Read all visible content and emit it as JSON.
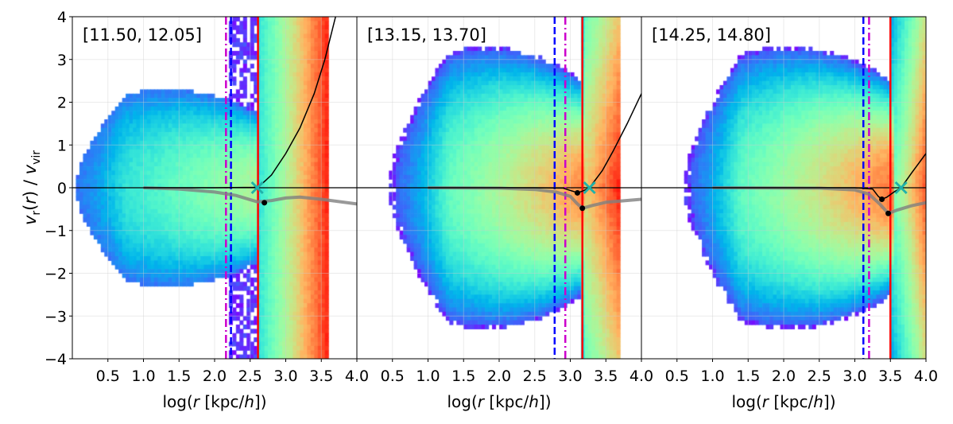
{
  "chart_data": {
    "type": "heatmap",
    "ylabel": "v_r(r) / v_vir",
    "xlabel": "log(r [kpc/h])",
    "xlim": [
      0,
      4
    ],
    "ylim": [
      -4,
      4
    ],
    "xticks": [
      "0.5",
      "1.0",
      "1.5",
      "2.0",
      "2.5",
      "3.0",
      "3.5",
      "4.0"
    ],
    "yticks": [
      "−4",
      "−3",
      "−2",
      "−1",
      "0",
      "1",
      "2",
      "3",
      "4"
    ],
    "grid": true,
    "colormap": "rainbow",
    "colors": {
      "blue_dashed": "#0000ff",
      "magenta_dashdot": "#cc00cc",
      "red_line": "#ff0000",
      "cross": "#20b2aa",
      "mean_profile": "#808080",
      "model_curve": "#000000",
      "contours": "#ffffff"
    },
    "panels": [
      {
        "label": "[11.50, 12.05]",
        "blue_dashed_x": 2.23,
        "magenta_dashdot_x": 2.16,
        "red_x": 2.61,
        "cross": [
          2.6,
          0
        ],
        "dots": [
          [
            2.7,
            -0.35
          ]
        ],
        "mean_profile": [
          [
            1.0,
            0
          ],
          [
            1.5,
            -0.03
          ],
          [
            2.0,
            -0.1
          ],
          [
            2.3,
            -0.18
          ],
          [
            2.6,
            -0.33
          ],
          [
            2.8,
            -0.3
          ],
          [
            3.0,
            -0.24
          ],
          [
            3.2,
            -0.22
          ],
          [
            3.5,
            -0.27
          ],
          [
            4.0,
            -0.38
          ]
        ],
        "model_curve": [
          [
            1.0,
            0
          ],
          [
            2.0,
            0
          ],
          [
            2.55,
            0.01
          ],
          [
            2.62,
            0.02
          ],
          [
            2.8,
            0.3
          ],
          [
            3.0,
            0.8
          ],
          [
            3.2,
            1.4
          ],
          [
            3.4,
            2.2
          ],
          [
            3.55,
            3.0
          ],
          [
            3.7,
            4.0
          ]
        ]
      },
      {
        "label": "[13.15, 13.70]",
        "blue_dashed_x": 2.78,
        "magenta_dashdot_x": 2.93,
        "red_x": 3.17,
        "cross": [
          3.27,
          0
        ],
        "dots": [
          [
            3.1,
            -0.12
          ],
          [
            3.17,
            -0.48
          ]
        ],
        "mean_profile": [
          [
            1.0,
            0
          ],
          [
            2.0,
            -0.01
          ],
          [
            2.5,
            -0.04
          ],
          [
            2.8,
            -0.1
          ],
          [
            3.0,
            -0.2
          ],
          [
            3.1,
            -0.38
          ],
          [
            3.17,
            -0.48
          ],
          [
            3.3,
            -0.42
          ],
          [
            3.5,
            -0.34
          ],
          [
            4.0,
            -0.27
          ]
        ],
        "model_curve": [
          [
            1.0,
            0
          ],
          [
            2.5,
            0
          ],
          [
            2.9,
            -0.01
          ],
          [
            3.05,
            -0.09
          ],
          [
            3.1,
            -0.12
          ],
          [
            3.17,
            -0.08
          ],
          [
            3.27,
            0
          ],
          [
            3.45,
            0.4
          ],
          [
            3.6,
            0.85
          ],
          [
            3.8,
            1.5
          ],
          [
            4.0,
            2.2
          ]
        ]
      },
      {
        "label": "[14.25, 14.80]",
        "blue_dashed_x": 3.12,
        "magenta_dashdot_x": 3.2,
        "red_x": 3.5,
        "cross": [
          3.65,
          0
        ],
        "dots": [
          [
            3.38,
            -0.27
          ],
          [
            3.47,
            -0.6
          ]
        ],
        "mean_profile": [
          [
            1.0,
            0
          ],
          [
            2.5,
            -0.01
          ],
          [
            3.0,
            -0.05
          ],
          [
            3.2,
            -0.15
          ],
          [
            3.35,
            -0.38
          ],
          [
            3.47,
            -0.6
          ],
          [
            3.6,
            -0.52
          ],
          [
            3.8,
            -0.42
          ],
          [
            4.0,
            -0.35
          ]
        ],
        "model_curve": [
          [
            1.0,
            0
          ],
          [
            3.0,
            0
          ],
          [
            3.25,
            -0.03
          ],
          [
            3.33,
            -0.2
          ],
          [
            3.38,
            -0.27
          ],
          [
            3.45,
            -0.22
          ],
          [
            3.55,
            -0.1
          ],
          [
            3.65,
            0
          ],
          [
            3.8,
            0.35
          ],
          [
            4.0,
            0.8
          ]
        ]
      }
    ]
  }
}
